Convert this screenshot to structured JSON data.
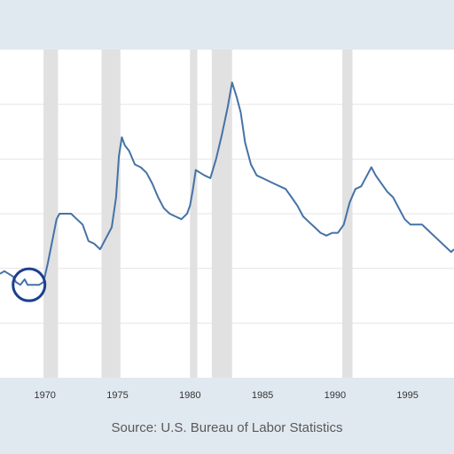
{
  "page": {
    "source_text": "Source: U.S. Bureau of Labor Statistics"
  },
  "colors": {
    "line": "#4572a7",
    "recession": "#e1e1e1",
    "grid": "#e6e6e6",
    "highlight_circle": "#1c3f8f",
    "background": "#e1e9f0",
    "plot_bg": "#ffffff",
    "tick_text": "#333333"
  },
  "chart_data": {
    "type": "line",
    "title": "",
    "xlabel": "",
    "ylabel": "",
    "x_tick_labels": [
      "1970",
      "1975",
      "1980",
      "1985",
      "1990",
      "1995"
    ],
    "xlim": [
      1966.9,
      1998.2
    ],
    "ylim": [
      0,
      12
    ],
    "grid": true,
    "recessions": [
      {
        "start": 1969.9,
        "end": 1970.9
      },
      {
        "start": 1973.9,
        "end": 1975.2
      },
      {
        "start": 1980.0,
        "end": 1980.5
      },
      {
        "start": 1981.5,
        "end": 1982.9
      },
      {
        "start": 1990.5,
        "end": 1991.2
      }
    ],
    "highlight": {
      "x": 1968.9,
      "y": 3.4
    },
    "series": [
      {
        "points": [
          [
            1966.9,
            3.8
          ],
          [
            1967.2,
            3.9
          ],
          [
            1967.5,
            3.8
          ],
          [
            1967.8,
            3.7
          ],
          [
            1968.0,
            3.5
          ],
          [
            1968.3,
            3.4
          ],
          [
            1968.6,
            3.6
          ],
          [
            1968.8,
            3.4
          ],
          [
            1969.2,
            3.4
          ],
          [
            1969.6,
            3.4
          ],
          [
            1969.9,
            3.5
          ],
          [
            1970.2,
            4.2
          ],
          [
            1970.5,
            5.0
          ],
          [
            1970.8,
            5.8
          ],
          [
            1971.0,
            6.0
          ],
          [
            1971.4,
            6.0
          ],
          [
            1971.8,
            6.0
          ],
          [
            1972.2,
            5.8
          ],
          [
            1972.6,
            5.6
          ],
          [
            1973.0,
            5.0
          ],
          [
            1973.4,
            4.9
          ],
          [
            1973.8,
            4.7
          ],
          [
            1974.2,
            5.1
          ],
          [
            1974.6,
            5.5
          ],
          [
            1974.9,
            6.6
          ],
          [
            1975.1,
            8.1
          ],
          [
            1975.3,
            8.8
          ],
          [
            1975.5,
            8.5
          ],
          [
            1975.8,
            8.3
          ],
          [
            1976.2,
            7.8
          ],
          [
            1976.6,
            7.7
          ],
          [
            1977.0,
            7.5
          ],
          [
            1977.4,
            7.1
          ],
          [
            1977.8,
            6.6
          ],
          [
            1978.2,
            6.2
          ],
          [
            1978.6,
            6.0
          ],
          [
            1979.0,
            5.9
          ],
          [
            1979.4,
            5.8
          ],
          [
            1979.8,
            6.0
          ],
          [
            1980.0,
            6.3
          ],
          [
            1980.2,
            6.9
          ],
          [
            1980.4,
            7.6
          ],
          [
            1980.7,
            7.5
          ],
          [
            1981.0,
            7.4
          ],
          [
            1981.4,
            7.3
          ],
          [
            1981.8,
            8.0
          ],
          [
            1982.2,
            8.9
          ],
          [
            1982.6,
            9.9
          ],
          [
            1982.9,
            10.8
          ],
          [
            1983.2,
            10.3
          ],
          [
            1983.5,
            9.7
          ],
          [
            1983.8,
            8.6
          ],
          [
            1984.2,
            7.8
          ],
          [
            1984.6,
            7.4
          ],
          [
            1985.0,
            7.3
          ],
          [
            1985.4,
            7.2
          ],
          [
            1985.8,
            7.1
          ],
          [
            1986.2,
            7.0
          ],
          [
            1986.6,
            6.9
          ],
          [
            1987.0,
            6.6
          ],
          [
            1987.4,
            6.3
          ],
          [
            1987.8,
            5.9
          ],
          [
            1988.2,
            5.7
          ],
          [
            1988.6,
            5.5
          ],
          [
            1989.0,
            5.3
          ],
          [
            1989.4,
            5.2
          ],
          [
            1989.8,
            5.3
          ],
          [
            1990.2,
            5.3
          ],
          [
            1990.6,
            5.6
          ],
          [
            1991.0,
            6.4
          ],
          [
            1991.4,
            6.9
          ],
          [
            1991.8,
            7.0
          ],
          [
            1992.2,
            7.4
          ],
          [
            1992.5,
            7.7
          ],
          [
            1992.8,
            7.4
          ],
          [
            1993.2,
            7.1
          ],
          [
            1993.6,
            6.8
          ],
          [
            1994.0,
            6.6
          ],
          [
            1994.4,
            6.2
          ],
          [
            1994.8,
            5.8
          ],
          [
            1995.2,
            5.6
          ],
          [
            1995.6,
            5.6
          ],
          [
            1996.0,
            5.6
          ],
          [
            1996.4,
            5.4
          ],
          [
            1996.8,
            5.2
          ],
          [
            1997.2,
            5.0
          ],
          [
            1997.6,
            4.8
          ],
          [
            1998.0,
            4.6
          ],
          [
            1998.2,
            4.7
          ]
        ]
      }
    ]
  }
}
